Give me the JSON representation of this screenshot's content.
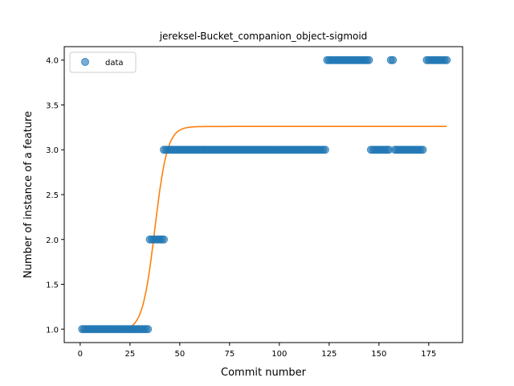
{
  "chart_data": {
    "type": "scatter",
    "title": "jereksel-Bucket_companion_object-sigmoid",
    "xlabel": "Commit number",
    "ylabel": "Number of instance of a feature",
    "xlim": [
      -8,
      192
    ],
    "ylim": [
      0.85,
      4.15
    ],
    "xticks": [
      "0",
      "25",
      "50",
      "75",
      "100",
      "125",
      "150",
      "175"
    ],
    "yticks": [
      "1.0",
      "1.5",
      "2.0",
      "2.5",
      "3.0",
      "3.5",
      "4.0"
    ],
    "grid": false,
    "legend": {
      "position": "top-left",
      "entries": [
        "data"
      ]
    },
    "series": [
      {
        "name": "data",
        "kind": "points",
        "color": "#1f77b4",
        "segments": [
          {
            "x_start": 1,
            "x_end": 34,
            "y": 1
          },
          {
            "x_start": 35,
            "x_end": 42,
            "y": 2
          },
          {
            "x_start": 42,
            "x_end": 123,
            "y": 3
          },
          {
            "x_start": 124,
            "x_end": 145,
            "y": 4
          },
          {
            "x_start": 146,
            "x_end": 155,
            "y": 3
          },
          {
            "x_start": 156,
            "x_end": 157,
            "y": 4
          },
          {
            "x_start": 158,
            "x_end": 172,
            "y": 3
          },
          {
            "x_start": 174,
            "x_end": 184,
            "y": 4
          }
        ]
      },
      {
        "kind": "sigmoid-fit",
        "color": "#ff7f0e",
        "x_start": 0,
        "x_end": 184,
        "base": 0.98,
        "top": 3.26,
        "midpoint": 37.5,
        "rate": 0.32
      }
    ]
  }
}
